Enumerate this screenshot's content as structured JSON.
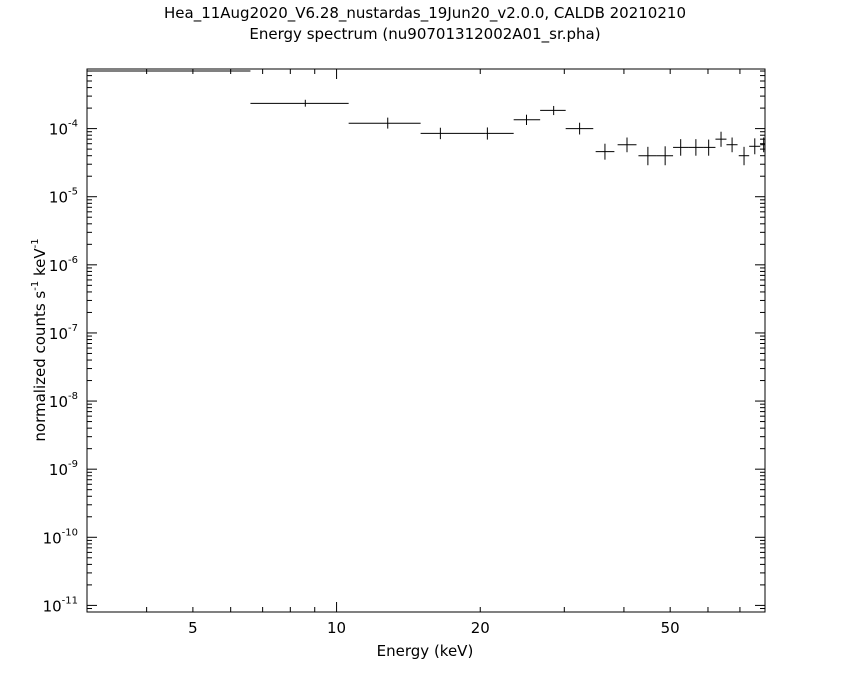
{
  "chart_data": {
    "type": "scatter",
    "title": "Hea_11Aug2020_V6.28_nustardas_19Jun20_v2.0.0, CALDB 20210210",
    "subtitle": "Energy spectrum (nu90701312002A01_sr.pha)",
    "xlabel": "Energy (keV)",
    "ylabel": {
      "pre": "normalized counts s",
      "exp1": "-1",
      "mid": " keV",
      "exp2": "-1"
    },
    "xscale": "log",
    "yscale": "log",
    "xlim": [
      3.0,
      79.0
    ],
    "ylim": [
      8e-12,
      0.00075
    ],
    "x_ticks": [
      {
        "value": 5,
        "label": "5"
      },
      {
        "value": 10,
        "label": "10"
      },
      {
        "value": 20,
        "label": "20"
      },
      {
        "value": 50,
        "label": "50"
      }
    ],
    "y_ticks": [
      {
        "value": 1e-11,
        "base": "10",
        "exp": "-11"
      },
      {
        "value": 1e-10,
        "base": "10",
        "exp": "-10"
      },
      {
        "value": 1e-09,
        "base": "10",
        "exp": "-9"
      },
      {
        "value": 1e-08,
        "base": "10",
        "exp": "-8"
      },
      {
        "value": 1e-07,
        "base": "10",
        "exp": "-7"
      },
      {
        "value": 1e-06,
        "base": "10",
        "exp": "-6"
      },
      {
        "value": 1e-05,
        "base": "10",
        "exp": "-5"
      },
      {
        "value": 0.0001,
        "base": "10",
        "exp": "-4"
      }
    ],
    "grid": false,
    "series": [
      {
        "points": [
          {
            "x": 4.8,
            "xlo": 3.0,
            "xhi": 6.6,
            "y": 0.0007,
            "ylo": 0.00069,
            "yhi": 0.00071
          },
          {
            "x": 8.6,
            "xlo": 6.6,
            "xhi": 10.6,
            "y": 0.000235,
            "ylo": 0.00021,
            "yhi": 0.000265
          },
          {
            "x": 12.8,
            "xlo": 10.6,
            "xhi": 15.0,
            "y": 0.00012,
            "ylo": 0.0001,
            "yhi": 0.000145
          },
          {
            "x": 16.5,
            "xlo": 15.0,
            "xhi": 20.5,
            "y": 8.5e-05,
            "ylo": 7e-05,
            "yhi": 0.000103
          },
          {
            "x": 20.7,
            "xlo": 20.5,
            "xhi": 23.5,
            "y": 8.5e-05,
            "ylo": 6.9e-05,
            "yhi": 0.000104
          },
          {
            "x": 25.0,
            "xlo": 23.5,
            "xhi": 26.7,
            "y": 0.000135,
            "ylo": 0.000113,
            "yhi": 0.00016
          },
          {
            "x": 28.5,
            "xlo": 26.7,
            "xhi": 30.2,
            "y": 0.000185,
            "ylo": 0.000158,
            "yhi": 0.000215
          },
          {
            "x": 32.3,
            "xlo": 30.2,
            "xhi": 34.5,
            "y": 0.0001,
            "ylo": 8.2e-05,
            "yhi": 0.000122
          },
          {
            "x": 36.5,
            "xlo": 34.9,
            "xhi": 38.2,
            "y": 4.6e-05,
            "ylo": 3.5e-05,
            "yhi": 6e-05
          },
          {
            "x": 40.6,
            "xlo": 38.8,
            "xhi": 42.5,
            "y": 5.8e-05,
            "ylo": 4.5e-05,
            "yhi": 7.4e-05
          },
          {
            "x": 44.9,
            "xlo": 42.9,
            "xhi": 46.9,
            "y": 4e-05,
            "ylo": 2.9e-05,
            "yhi": 5.4e-05
          },
          {
            "x": 48.8,
            "xlo": 46.9,
            "xhi": 50.7,
            "y": 4e-05,
            "ylo": 2.9e-05,
            "yhi": 5.5e-05
          },
          {
            "x": 52.6,
            "xlo": 50.7,
            "xhi": 54.6,
            "y": 5.3e-05,
            "ylo": 4e-05,
            "yhi": 7e-05
          },
          {
            "x": 56.6,
            "xlo": 54.6,
            "xhi": 58.6,
            "y": 5.3e-05,
            "ylo": 4e-05,
            "yhi": 7e-05
          },
          {
            "x": 60.2,
            "xlo": 58.6,
            "xhi": 62.2,
            "y": 5.3e-05,
            "ylo": 4e-05,
            "yhi": 6.9e-05
          },
          {
            "x": 63.9,
            "xlo": 62.2,
            "xhi": 65.6,
            "y": 7e-05,
            "ylo": 5.4e-05,
            "yhi": 9e-05
          },
          {
            "x": 67.4,
            "xlo": 65.6,
            "xhi": 69.2,
            "y": 5.8e-05,
            "ylo": 4.5e-05,
            "yhi": 7.4e-05
          },
          {
            "x": 71.4,
            "xlo": 69.6,
            "xhi": 73.2,
            "y": 4e-05,
            "ylo": 2.9e-05,
            "yhi": 5.4e-05
          },
          {
            "x": 75.2,
            "xlo": 73.2,
            "xhi": 77.2,
            "y": 5.5e-05,
            "ylo": 4.2e-05,
            "yhi": 7.2e-05
          },
          {
            "x": 78.5,
            "xlo": 77.2,
            "xhi": 79.0,
            "y": 5.8e-05,
            "ylo": 4.5e-05,
            "yhi": 7.4e-05
          }
        ]
      }
    ]
  }
}
